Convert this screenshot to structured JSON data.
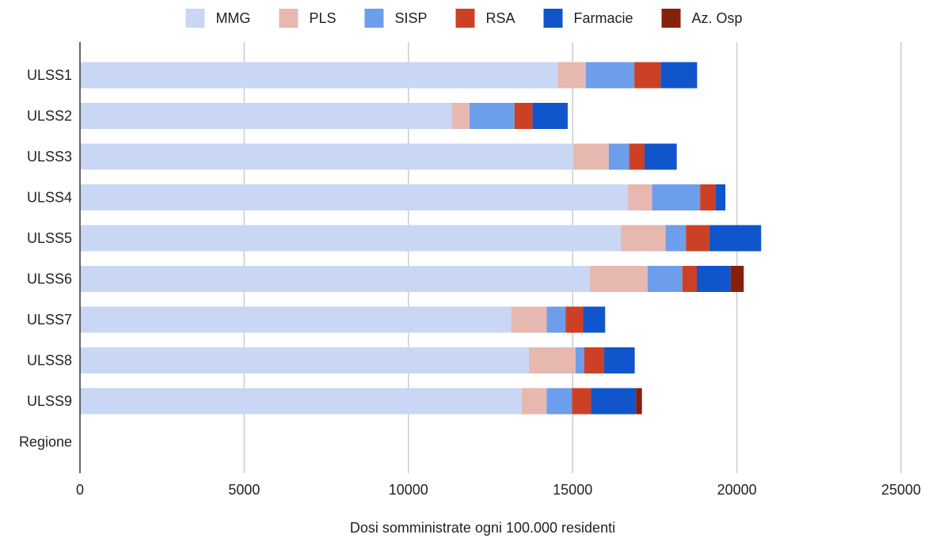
{
  "chart_data": {
    "type": "bar",
    "orientation": "horizontal",
    "stacked": true,
    "categories": [
      "ULSS1",
      "ULSS2",
      "ULSS3",
      "ULSS4",
      "ULSS5",
      "ULSS6",
      "ULSS7",
      "ULSS8",
      "ULSS9",
      "Regione"
    ],
    "series": [
      {
        "name": "MMG",
        "color": "#c9d7f5",
        "values": [
          14550,
          11320,
          15020,
          16680,
          16470,
          15530,
          13130,
          13670,
          13450,
          0
        ]
      },
      {
        "name": "PLS",
        "color": "#e6b8b0",
        "values": [
          850,
          540,
          1080,
          740,
          1360,
          1750,
          1080,
          1420,
          760,
          0
        ]
      },
      {
        "name": "SISP",
        "color": "#6d9eeb",
        "values": [
          1480,
          1370,
          620,
          1460,
          620,
          1060,
          580,
          260,
          770,
          0
        ]
      },
      {
        "name": "RSA",
        "color": "#cc4125",
        "values": [
          800,
          550,
          470,
          470,
          710,
          440,
          530,
          610,
          580,
          0
        ]
      },
      {
        "name": "Farmacie",
        "color": "#1155cc",
        "values": [
          1110,
          1070,
          980,
          300,
          1580,
          1030,
          670,
          930,
          1370,
          0
        ]
      },
      {
        "name": "Az. Osp",
        "color": "#85200c",
        "values": [
          0,
          0,
          0,
          0,
          0,
          400,
          0,
          0,
          180,
          0
        ]
      }
    ],
    "xlim": [
      0,
      25000
    ],
    "xticks": [
      "0",
      "5000",
      "10000",
      "15000",
      "20000",
      "25000"
    ],
    "xlabel": "Dosi somministrate ogni 100.000 residenti",
    "ylabel": "",
    "title": "",
    "legend_position": "top",
    "grid": true
  }
}
